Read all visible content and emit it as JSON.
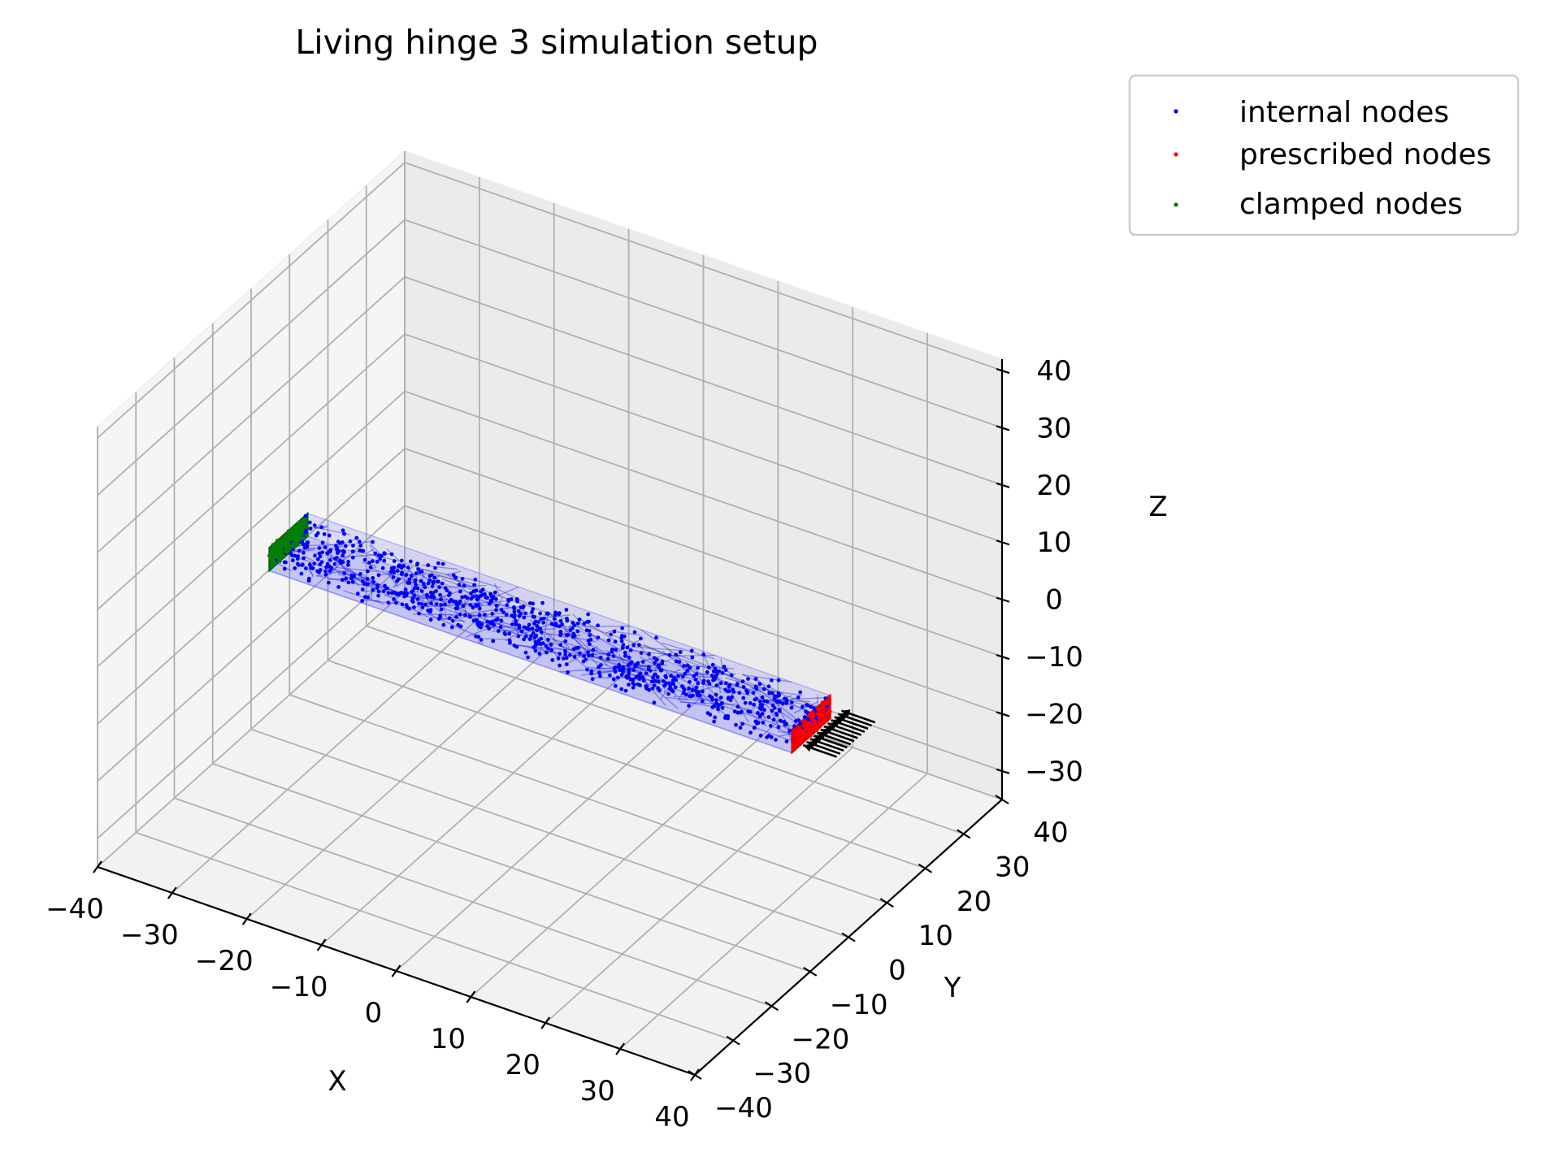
{
  "chart_data": {
    "type": "scatter",
    "projection": "3d",
    "title": "Living hinge 3 simulation setup",
    "xlabel": "X",
    "ylabel": "Y",
    "zlabel": "Z",
    "xlim": [
      -40,
      40
    ],
    "ylim": [
      -40,
      40
    ],
    "zlim": [
      -35,
      42
    ],
    "xticks": [
      "−40",
      "−30",
      "−20",
      "−10",
      "0",
      "10",
      "20",
      "30",
      "40"
    ],
    "yticks": [
      "−40",
      "−30",
      "−20",
      "−10",
      "0",
      "10",
      "20",
      "30",
      "40"
    ],
    "zticks": [
      "−30",
      "−20",
      "−10",
      "0",
      "10",
      "20",
      "30",
      "40"
    ],
    "grid": true,
    "legend_position": "outside top-right",
    "series": [
      {
        "name": "internal nodes",
        "color": "#0000ff",
        "marker": "dot",
        "region": {
          "x": [
            -35,
            35
          ],
          "y": [
            -5,
            5
          ],
          "z": [
            -2,
            2
          ]
        }
      },
      {
        "name": "prescribed nodes",
        "color": "#ff0000",
        "marker": "dot",
        "region": {
          "x": [
            35,
            35
          ],
          "y": [
            -5,
            5
          ],
          "z": [
            -2,
            2
          ]
        }
      },
      {
        "name": "clamped nodes",
        "color": "#008000",
        "marker": "dot",
        "region": {
          "x": [
            -35,
            -35
          ],
          "y": [
            -5,
            5
          ],
          "z": [
            -2,
            2
          ]
        }
      }
    ],
    "prescribed_load_arrows": {
      "color": "#000000",
      "direction": [
        -1,
        0,
        0
      ],
      "count": 12
    }
  }
}
